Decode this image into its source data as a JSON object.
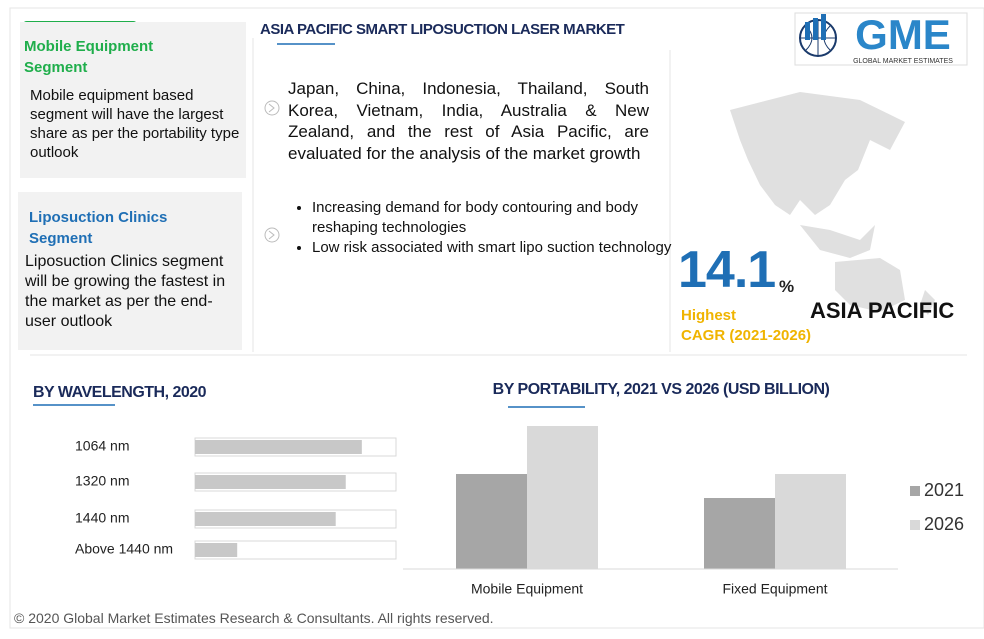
{
  "header": {
    "title": "ASIA PACIFIC SMART LIPOSUCTION LASER MARKET",
    "logo": "GME",
    "logo_subtitle": "GLOBAL MARKET ESTIMATES"
  },
  "segments": [
    {
      "title": "Mobile Equipment Segment",
      "text": "Mobile equipment based segment will have the largest share as per the portability type outlook"
    },
    {
      "title": "Liposuction Clinics Segment",
      "text": "Liposuction Clinics segment will be growing the fastest in the market as per the end-user outlook"
    }
  ],
  "description": {
    "text": "Japan, China, Indonesia, Thailand, South Korea, Vietnam, India, Australia & New Zealand, and the rest of Asia Pacific, are evaluated for the analysis of the market growth",
    "bullets": [
      "Increasing demand for body contouring and body reshaping technologies",
      "Low risk associated with smart lipo suction technology"
    ]
  },
  "stat": {
    "value": 14.1,
    "unit": "%",
    "label_line1": "Highest",
    "label_line2": "CAGR (2021-2026)",
    "region": "ASIA PACIFIC"
  },
  "chart_data": [
    {
      "type": "hbar",
      "title": "BY WAVELENGTH, 2020",
      "categories": [
        "1064 nm",
        "1320 nm",
        "1440 nm",
        "Above 1440 nm"
      ],
      "values": [
        83,
        75,
        70,
        21
      ],
      "color": "#c8c8c8",
      "xlim": [
        0,
        100
      ]
    },
    {
      "type": "bar",
      "title": "BY PORTABILITY, 2021 VS 2026 (USD BILLION)",
      "categories": [
        "Mobile Equipment",
        "Fixed Equipment"
      ],
      "series": [
        {
          "name": "2021",
          "color": "#a6a6a6",
          "values": [
            95,
            71
          ]
        },
        {
          "name": "2026",
          "color": "#d9d9d9",
          "values": [
            143,
            95
          ]
        }
      ],
      "ylim": [
        0,
        150
      ],
      "legend": "right"
    }
  ],
  "footer": "© 2020 Global Market Estimates Research & Consultants. All rights reserved."
}
